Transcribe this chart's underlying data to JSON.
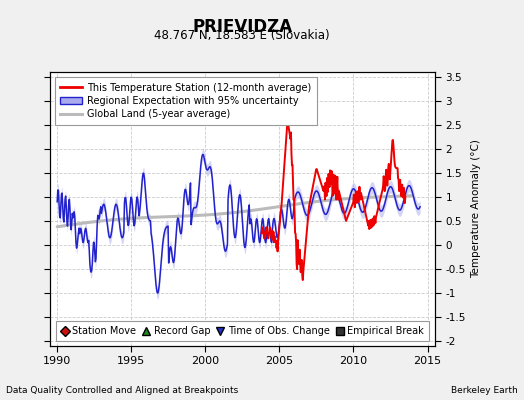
{
  "title": "PRIEVIDZA",
  "subtitle": "48.767 N, 18.583 E (Slovakia)",
  "ylabel": "Temperature Anomaly (°C)",
  "xlim": [
    1989.5,
    2015.5
  ],
  "ylim": [
    -2.1,
    3.6
  ],
  "yticks": [
    -2,
    -1.5,
    -1,
    -0.5,
    0,
    0.5,
    1,
    1.5,
    2,
    2.5,
    3,
    3.5
  ],
  "xticks": [
    1990,
    1995,
    2000,
    2005,
    2010,
    2015
  ],
  "footer_left": "Data Quality Controlled and Aligned at Breakpoints",
  "footer_right": "Berkeley Earth",
  "bg_color": "#f0f0f0",
  "plot_bg": "#ffffff",
  "grid_color": "#cccccc",
  "grid_style": "--"
}
